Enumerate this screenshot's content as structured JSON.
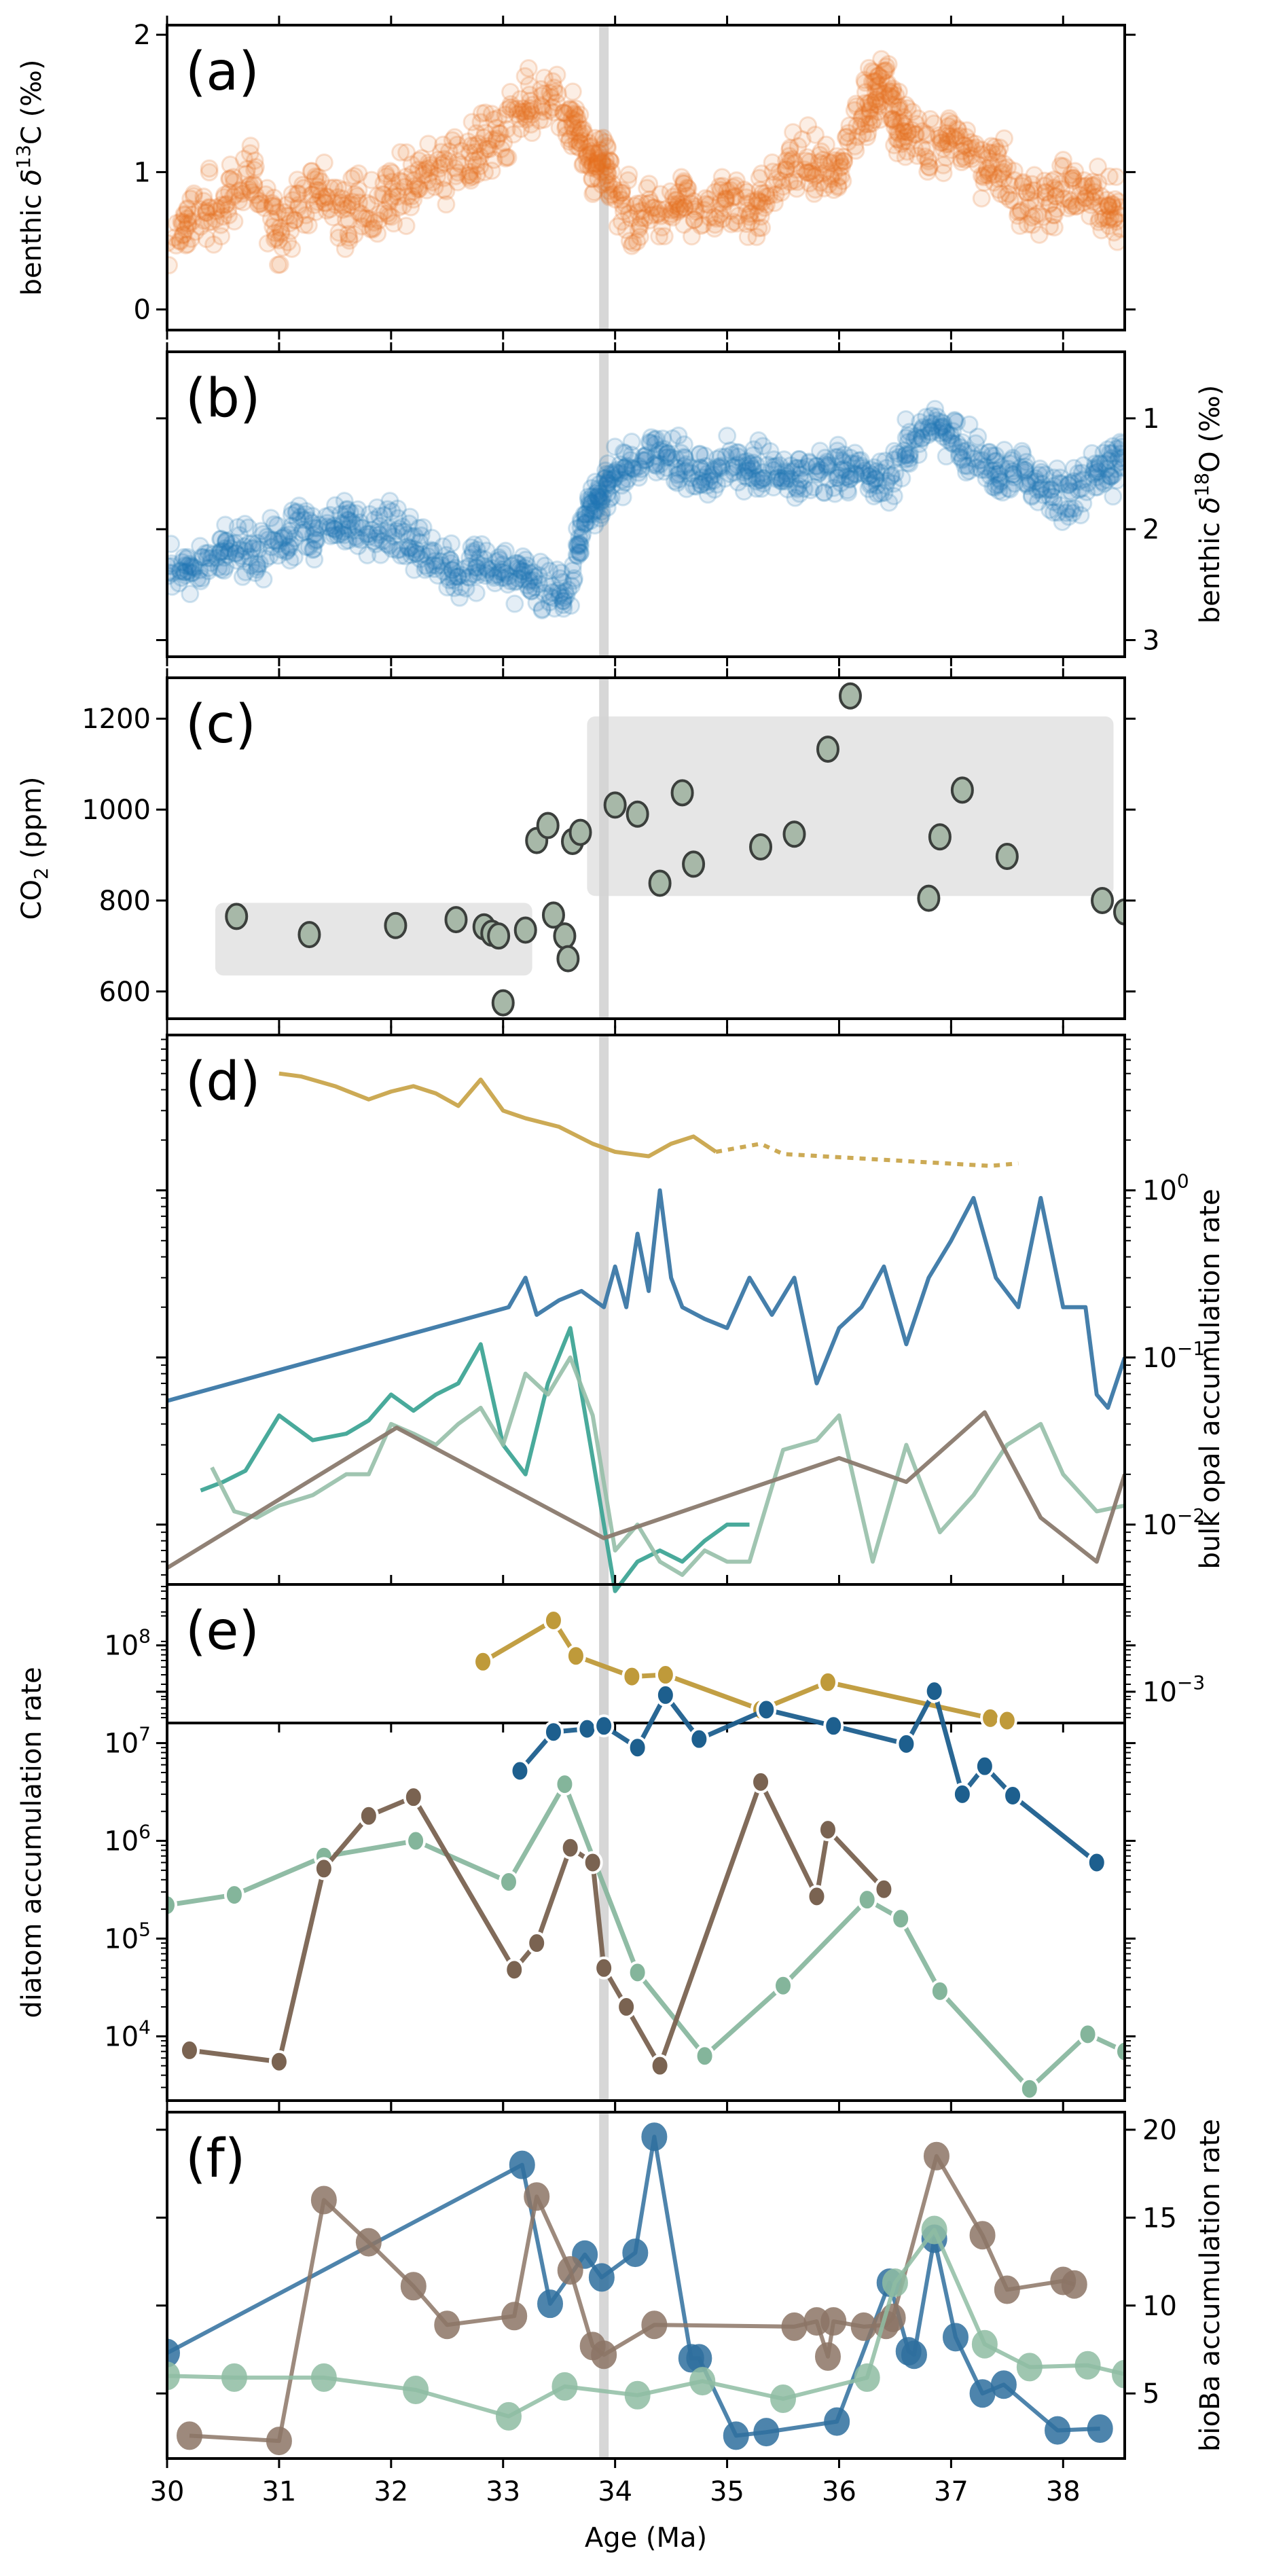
{
  "figure": {
    "xaxis": {
      "label": "Age (Ma)",
      "ticks": [
        30,
        31,
        32,
        33,
        34,
        35,
        36,
        37,
        38
      ],
      "range": [
        30,
        38.55
      ]
    },
    "eot_marker_age": 33.9
  },
  "chart_data": [
    {
      "panel": "a",
      "panel_label": "(a)",
      "type": "scatter",
      "ylabel": "benthic δ13C (‰)",
      "ylabel_parts": {
        "pre": "benthic ",
        "delta": "δ",
        "sup": "13",
        "post": "C (‰)"
      },
      "yaxis_side": "left",
      "ylim": [
        -0.15,
        2.07
      ],
      "yticks": [
        0,
        1,
        2
      ],
      "color": "#e8701e",
      "series": [
        {
          "name": "benthic d13C",
          "x": [
            30.0,
            30.2,
            30.4,
            30.6,
            30.8,
            31.0,
            31.2,
            31.4,
            31.6,
            31.8,
            32.0,
            32.2,
            32.4,
            32.6,
            32.8,
            33.0,
            33.2,
            33.4,
            33.6,
            33.7,
            33.8,
            33.9,
            34.0,
            34.2,
            34.4,
            34.6,
            34.8,
            35.0,
            35.2,
            35.4,
            35.6,
            35.8,
            36.0,
            36.2,
            36.3,
            36.4,
            36.5,
            36.6,
            36.8,
            37.0,
            37.2,
            37.4,
            37.6,
            37.8,
            38.0,
            38.2,
            38.4,
            38.55
          ],
          "y": [
            0.5,
            0.65,
            0.75,
            0.85,
            0.95,
            0.55,
            0.75,
            0.85,
            0.7,
            0.75,
            0.85,
            0.9,
            1.0,
            1.05,
            1.15,
            1.3,
            1.45,
            1.6,
            1.35,
            1.2,
            1.05,
            1.05,
            0.85,
            0.65,
            0.75,
            0.8,
            0.7,
            0.75,
            0.72,
            0.9,
            1.1,
            1.0,
            1.05,
            1.4,
            1.55,
            1.7,
            1.45,
            1.3,
            1.15,
            1.25,
            1.1,
            1.05,
            0.8,
            0.75,
            0.9,
            0.8,
            0.75,
            0.72
          ]
        }
      ]
    },
    {
      "panel": "b",
      "panel_label": "(b)",
      "type": "scatter",
      "ylabel": "benthic δ18O (‰)",
      "ylabel_parts": {
        "pre": "benthic ",
        "delta": "δ",
        "sup": "18",
        "post": "O (‰)"
      },
      "yaxis_side": "right",
      "yinverted": true,
      "ylim": [
        3.15,
        0.4
      ],
      "yticks": [
        1,
        2,
        3
      ],
      "color": "#1f77b4",
      "series": [
        {
          "name": "benthic d18O",
          "x": [
            30.0,
            30.2,
            30.4,
            30.6,
            30.8,
            31.0,
            31.2,
            31.4,
            31.6,
            31.8,
            32.0,
            32.2,
            32.4,
            32.6,
            32.8,
            33.0,
            33.2,
            33.4,
            33.6,
            33.7,
            33.8,
            33.9,
            34.0,
            34.2,
            34.4,
            34.6,
            34.8,
            35.0,
            35.2,
            35.4,
            35.6,
            35.8,
            36.0,
            36.2,
            36.4,
            36.6,
            36.8,
            37.0,
            37.2,
            37.4,
            37.6,
            37.8,
            38.0,
            38.2,
            38.4,
            38.55
          ],
          "y": [
            2.3,
            2.35,
            2.25,
            2.15,
            2.2,
            2.1,
            2.0,
            2.05,
            1.95,
            2.0,
            2.05,
            2.1,
            2.3,
            2.35,
            2.3,
            2.4,
            2.45,
            2.55,
            2.6,
            2.0,
            1.8,
            1.65,
            1.5,
            1.4,
            1.35,
            1.45,
            1.5,
            1.4,
            1.45,
            1.5,
            1.55,
            1.5,
            1.45,
            1.5,
            1.6,
            1.3,
            1.05,
            1.15,
            1.3,
            1.45,
            1.5,
            1.6,
            1.75,
            1.6,
            1.45,
            1.4
          ]
        }
      ]
    },
    {
      "panel": "c",
      "panel_label": "(c)",
      "type": "scatter",
      "ylabel": "CO2 (ppm)",
      "ylabel_parts": {
        "pre": "CO",
        "sub": "2",
        "post": " (ppm)"
      },
      "yaxis_side": "left",
      "ylim": [
        540,
        1290
      ],
      "yticks": [
        600,
        800,
        1000,
        1200
      ],
      "color": "#a7b8a8",
      "edge_color": "#3b3f3c",
      "bands": [
        {
          "x0": 30.43,
          "x1": 33.26,
          "y0": 635,
          "y1": 795
        },
        {
          "x0": 33.75,
          "x1": 38.45,
          "y0": 810,
          "y1": 1205
        }
      ],
      "series": [
        {
          "name": "CO2",
          "x": [
            30.62,
            31.27,
            32.04,
            32.58,
            32.83,
            32.9,
            32.96,
            33.0,
            33.2,
            33.3,
            33.4,
            33.45,
            33.55,
            33.58,
            33.62,
            33.69,
            34.0,
            34.2,
            34.4,
            34.6,
            34.7,
            35.3,
            35.6,
            35.9,
            36.1,
            36.8,
            36.9,
            37.1,
            37.5,
            38.35,
            38.55
          ],
          "y": [
            765,
            725,
            745,
            758,
            742,
            728,
            722,
            575,
            735,
            932,
            965,
            768,
            722,
            672,
            930,
            950,
            1010,
            990,
            838,
            1037,
            880,
            918,
            946,
            1133,
            1250,
            805,
            940,
            1043,
            897,
            800,
            775
          ]
        }
      ]
    },
    {
      "panel": "d",
      "panel_label": "(d)",
      "type": "line",
      "ylabel": "bulk opal accumulation rate",
      "yaxis_side": "right",
      "yscale": "log",
      "ylim": [
        0.00065,
        8.5
      ],
      "yticks": [
        {
          "value": 0.001,
          "base": "10",
          "exp": "−3"
        },
        {
          "value": 0.01,
          "base": "10",
          "exp": "−2"
        },
        {
          "value": 0.1,
          "base": "10",
          "exp": "−1"
        },
        {
          "value": 1,
          "base": "10",
          "exp": "0"
        }
      ],
      "series": [
        {
          "name": "gold",
          "color": "#c9a54c",
          "x": [
            31.0,
            31.2,
            31.5,
            31.8,
            32.0,
            32.2,
            32.4,
            32.6,
            32.8,
            33.0,
            33.2,
            33.5,
            33.8,
            34.0,
            34.3,
            34.5,
            34.7,
            34.9
          ],
          "y": [
            5.0,
            4.8,
            4.2,
            3.5,
            3.9,
            4.2,
            3.8,
            3.2,
            4.6,
            3.0,
            2.7,
            2.4,
            1.9,
            1.7,
            1.6,
            1.9,
            2.1,
            1.7
          ]
        },
        {
          "name": "gold-dotted",
          "color": "#c9a54c",
          "dashed": true,
          "x": [
            34.9,
            35.3,
            35.5,
            37.35,
            37.6
          ],
          "y": [
            1.7,
            1.9,
            1.65,
            1.4,
            1.45
          ]
        },
        {
          "name": "blue",
          "color": "#3b78a6",
          "x": [
            30.0,
            33.05,
            33.2,
            33.3,
            33.5,
            33.7,
            33.9,
            34.0,
            34.1,
            34.2,
            34.3,
            34.4,
            34.5,
            34.6,
            34.8,
            35.0,
            35.2,
            35.4,
            35.6,
            35.8,
            36.0,
            36.2,
            36.4,
            36.6,
            36.8,
            37.0,
            37.2,
            37.4,
            37.6,
            37.8,
            38.0,
            38.2,
            38.3,
            38.4,
            38.55
          ],
          "y": [
            0.055,
            0.2,
            0.3,
            0.18,
            0.22,
            0.25,
            0.2,
            0.35,
            0.2,
            0.55,
            0.25,
            1.0,
            0.3,
            0.2,
            0.17,
            0.15,
            0.3,
            0.18,
            0.3,
            0.07,
            0.15,
            0.2,
            0.35,
            0.12,
            0.3,
            0.5,
            0.9,
            0.3,
            0.2,
            0.9,
            0.2,
            0.2,
            0.06,
            0.05,
            0.1
          ]
        },
        {
          "name": "teal",
          "color": "#3fa596",
          "x": [
            30.3,
            30.5,
            30.7,
            31.0,
            31.3,
            31.6,
            31.8,
            32.0,
            32.2,
            32.4,
            32.6,
            32.8,
            33.0,
            33.2,
            33.4,
            33.6,
            33.8,
            33.9,
            34.0,
            34.2,
            34.4,
            34.6,
            34.8,
            35.0,
            35.2
          ],
          "y": [
            0.016,
            0.018,
            0.021,
            0.045,
            0.032,
            0.035,
            0.042,
            0.06,
            0.048,
            0.06,
            0.07,
            0.12,
            0.03,
            0.02,
            0.07,
            0.15,
            0.025,
            0.01,
            0.004,
            0.006,
            0.007,
            0.006,
            0.008,
            0.01,
            0.01
          ]
        },
        {
          "name": "sage",
          "color": "#96bfa8",
          "x": [
            30.4,
            30.6,
            30.8,
            31.0,
            31.3,
            31.6,
            31.8,
            32.0,
            32.2,
            32.4,
            32.6,
            32.8,
            33.0,
            33.2,
            33.4,
            33.6,
            33.8,
            34.0,
            34.2,
            34.4,
            34.6,
            34.8,
            35.0,
            35.2,
            35.5,
            35.8,
            36.0,
            36.3,
            36.6,
            36.9,
            37.2,
            37.5,
            37.8,
            38.0,
            38.3,
            38.55
          ],
          "y": [
            0.022,
            0.012,
            0.011,
            0.013,
            0.015,
            0.02,
            0.02,
            0.04,
            0.035,
            0.03,
            0.04,
            0.05,
            0.03,
            0.08,
            0.06,
            0.1,
            0.045,
            0.007,
            0.01,
            0.006,
            0.005,
            0.007,
            0.006,
            0.006,
            0.028,
            0.032,
            0.045,
            0.006,
            0.03,
            0.009,
            0.015,
            0.03,
            0.04,
            0.02,
            0.012,
            0.013
          ]
        },
        {
          "name": "brown",
          "color": "#8a7a6e",
          "x": [
            30.0,
            32.05,
            33.9,
            36.0,
            36.6,
            37.3,
            37.8,
            38.3,
            38.55
          ],
          "y": [
            0.0055,
            0.038,
            0.0083,
            0.025,
            0.018,
            0.047,
            0.011,
            0.006,
            0.02
          ]
        }
      ]
    },
    {
      "panel": "e",
      "panel_label": "(e)",
      "type": "line",
      "ylabel": "diatom accumulation rate",
      "yaxis_side": "left",
      "yscale": "log",
      "ylim": [
        2200,
        420000000
      ],
      "yticks": [
        {
          "value": 10000,
          "base": "10",
          "exp": "4"
        },
        {
          "value": 100000,
          "base": "10",
          "exp": "5"
        },
        {
          "value": 1000000,
          "base": "10",
          "exp": "6"
        },
        {
          "value": 10000000,
          "base": "10",
          "exp": "7"
        },
        {
          "value": 100000000,
          "base": "10",
          "exp": "8"
        }
      ],
      "series": [
        {
          "name": "gold",
          "color": "#bf9a3a",
          "x": [
            32.82,
            33.45,
            33.65,
            34.15,
            34.45,
            35.3,
            35.9,
            37.35,
            37.5
          ],
          "y": [
            68000000,
            180000000,
            78000000,
            48000000,
            50000000,
            22000000,
            42000000,
            18000000,
            17000000
          ]
        },
        {
          "name": "blue",
          "color": "#1d5f8e",
          "x": [
            33.15,
            33.45,
            33.75,
            33.9,
            34.2,
            34.45,
            34.75,
            35.35,
            35.95,
            36.6,
            36.85,
            37.1,
            37.3,
            37.55,
            38.3
          ],
          "y": [
            5200000,
            13000000,
            14000000,
            15000000,
            9000000,
            31000000,
            11000000,
            22000000,
            15000000,
            9800000,
            34000000,
            3000000,
            5800000,
            2900000,
            600000
          ]
        },
        {
          "name": "sage",
          "color": "#84b59b",
          "x": [
            30.0,
            30.6,
            31.4,
            32.22,
            33.05,
            33.55,
            34.2,
            34.8,
            35.5,
            36.25,
            36.55,
            36.9,
            37.7,
            38.22,
            38.55
          ],
          "y": [
            220000,
            280000,
            690000,
            1000000,
            380000,
            3800000,
            45000,
            6300,
            33000,
            250000,
            160000,
            29000,
            2900,
            10500,
            7000
          ]
        },
        {
          "name": "brown",
          "color": "#7a6351",
          "x": [
            30.2,
            31.0,
            31.4,
            31.8,
            32.2,
            33.1,
            33.3,
            33.6,
            33.8,
            33.9,
            34.1,
            34.4,
            35.3,
            35.8,
            35.9,
            36.4
          ],
          "y": [
            7200,
            5500,
            520000,
            1800000,
            2800000,
            48000,
            90000,
            850000,
            600000,
            50000,
            20000,
            5000,
            4000000,
            270000,
            1300000,
            320000
          ]
        }
      ]
    },
    {
      "panel": "f",
      "panel_label": "(f)",
      "type": "line",
      "ylabel": "bioBa accumulation rate",
      "yaxis_side": "right",
      "ylim": [
        1.3,
        21
      ],
      "yticks": [
        5,
        10,
        15,
        20
      ],
      "series": [
        {
          "name": "blue",
          "color": "#2f6f9e",
          "x": [
            30.0,
            33.17,
            33.42,
            33.73,
            33.88,
            34.18,
            34.35,
            34.68,
            34.75,
            35.08,
            35.35,
            35.98,
            36.45,
            36.62,
            36.67,
            36.85,
            37.04,
            37.28,
            37.47,
            37.95,
            38.33
          ],
          "y": [
            7.3,
            18.0,
            10.1,
            12.9,
            11.6,
            13.0,
            19.6,
            7.0,
            7.0,
            2.6,
            2.8,
            3.4,
            11.3,
            7.4,
            7.2,
            13.8,
            8.2,
            5.0,
            5.5,
            2.9,
            3.0
          ]
        },
        {
          "name": "brown",
          "color": "#8c7566",
          "x": [
            30.2,
            31.0,
            31.4,
            31.8,
            32.2,
            32.5,
            33.1,
            33.3,
            33.6,
            33.8,
            33.9,
            34.35,
            35.6,
            35.8,
            35.9,
            35.95,
            36.22,
            36.42,
            36.48,
            36.87,
            37.28,
            37.5,
            38.0,
            38.1
          ],
          "y": [
            2.6,
            2.3,
            16.0,
            13.6,
            11.1,
            8.9,
            9.4,
            16.2,
            12.0,
            7.7,
            7.2,
            8.9,
            8.8,
            9.1,
            7.1,
            9.1,
            8.8,
            8.9,
            9.3,
            18.5,
            14.0,
            10.9,
            11.4,
            11.2
          ]
        },
        {
          "name": "sage",
          "color": "#8fbda3",
          "x": [
            30.0,
            30.6,
            31.4,
            32.22,
            33.05,
            33.55,
            34.2,
            34.78,
            35.5,
            36.25,
            36.5,
            36.85,
            37.3,
            37.7,
            38.22,
            38.55
          ],
          "y": [
            6.0,
            5.9,
            5.9,
            5.2,
            3.7,
            5.4,
            4.9,
            5.7,
            4.7,
            5.9,
            11.3,
            14.3,
            7.8,
            6.5,
            6.6,
            6.1
          ]
        }
      ]
    }
  ]
}
